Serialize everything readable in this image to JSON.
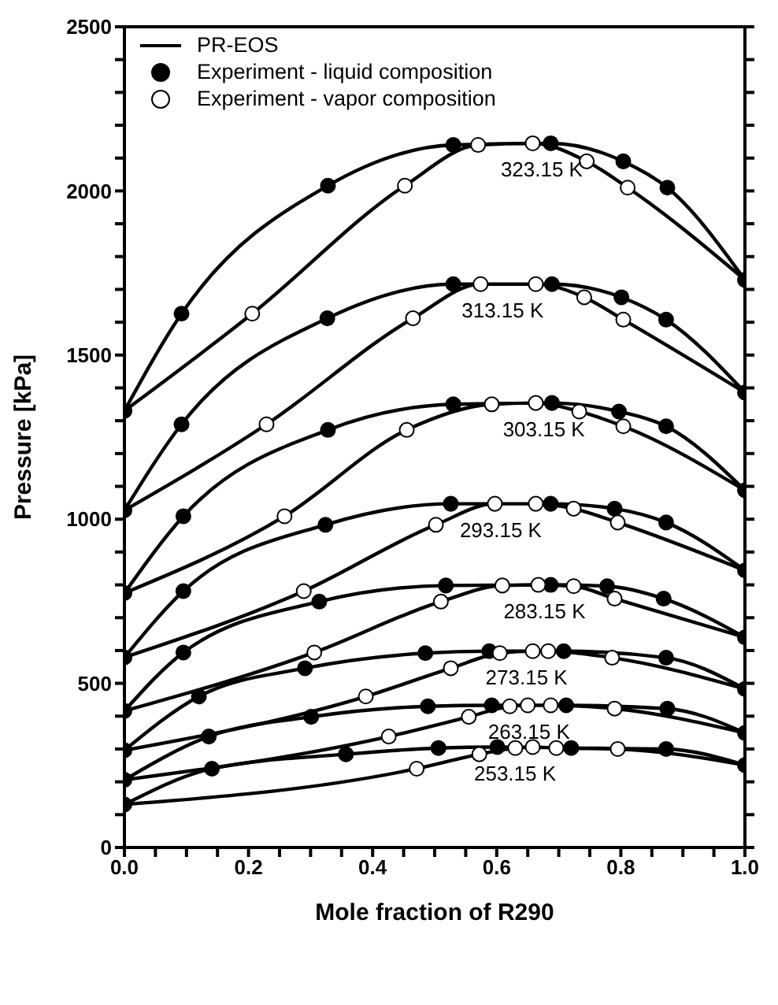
{
  "chart_data": {
    "type": "line",
    "xlabel": "Mole fraction of R290",
    "ylabel": "Pressure [kPa]",
    "xlim": [
      0,
      1
    ],
    "ylim": [
      0,
      2500
    ],
    "xticks": [
      {
        "value": 0,
        "label": "0.0"
      },
      {
        "value": 0.05,
        "label": null
      },
      {
        "value": 0.1,
        "label": null
      },
      {
        "value": 0.15,
        "label": null
      },
      {
        "value": 0.2,
        "label": "0.2"
      },
      {
        "value": 0.25,
        "label": null
      },
      {
        "value": 0.3,
        "label": null
      },
      {
        "value": 0.35,
        "label": null
      },
      {
        "value": 0.4,
        "label": "0.4"
      },
      {
        "value": 0.45,
        "label": null
      },
      {
        "value": 0.5,
        "label": null
      },
      {
        "value": 0.55,
        "label": null
      },
      {
        "value": 0.6,
        "label": "0.6"
      },
      {
        "value": 0.65,
        "label": null
      },
      {
        "value": 0.7,
        "label": null
      },
      {
        "value": 0.75,
        "label": null
      },
      {
        "value": 0.8,
        "label": "0.8"
      },
      {
        "value": 0.85,
        "label": null
      },
      {
        "value": 0.9,
        "label": null
      },
      {
        "value": 0.95,
        "label": null
      },
      {
        "value": 1,
        "label": "1.0"
      }
    ],
    "yticks": [
      0,
      {
        "value": 100,
        "label": null
      },
      {
        "value": 200,
        "label": null
      },
      {
        "value": 300,
        "label": null
      },
      {
        "value": 400,
        "label": null
      },
      500,
      {
        "value": 600,
        "label": null
      },
      {
        "value": 700,
        "label": null
      },
      {
        "value": 800,
        "label": null
      },
      {
        "value": 900,
        "label": null
      },
      1000,
      {
        "value": 1100,
        "label": null
      },
      {
        "value": 1200,
        "label": null
      },
      {
        "value": 1300,
        "label": null
      },
      {
        "value": 1400,
        "label": null
      },
      1500,
      {
        "value": 1600,
        "label": null
      },
      {
        "value": 1700,
        "label": null
      },
      {
        "value": 1800,
        "label": null
      },
      {
        "value": 1900,
        "label": null
      },
      2000,
      {
        "value": 2100,
        "label": null
      },
      {
        "value": 2200,
        "label": null
      },
      {
        "value": 2300,
        "label": null
      },
      {
        "value": 2400,
        "label": null
      },
      2500
    ],
    "grid": false,
    "legend": "top left",
    "line_style": "solid",
    "series": [
      {
        "name": "PR-EOS",
        "color": "#000000",
        "x": [
          0,
          0.092,
          0.328,
          0.53,
          0.687,
          0.804,
          0.875,
          1,
          null,
          0,
          0.206,
          0.452,
          0.57,
          0.658,
          0.745,
          0.811,
          1
        ],
        "values": [
          1330,
          1626,
          2016,
          2140,
          2145,
          2090,
          2010,
          1729,
          null,
          1330,
          1626,
          2016,
          2140,
          2145,
          2090,
          2010,
          1729
        ]
      },
      {
        "color": "#000000",
        "x": [
          0,
          0.092,
          0.327,
          0.53,
          0.689,
          0.801,
          0.873,
          1,
          null,
          0,
          0.229,
          0.465,
          0.574,
          0.663,
          0.741,
          0.804,
          1
        ],
        "values": [
          1027,
          1289,
          1612,
          1716,
          1716,
          1676,
          1608,
          1386,
          null,
          1027,
          1289,
          1612,
          1716,
          1716,
          1676,
          1608,
          1386
        ]
      },
      {
        "color": "#000000",
        "x": [
          0,
          0.095,
          0.328,
          0.53,
          0.689,
          0.797,
          0.873,
          1,
          null,
          0,
          0.258,
          0.455,
          0.592,
          0.663,
          0.733,
          0.804,
          1
        ],
        "values": [
          775,
          1009,
          1272,
          1350,
          1354,
          1328,
          1283,
          1088,
          null,
          775,
          1009,
          1272,
          1350,
          1354,
          1328,
          1283,
          1088
        ]
      },
      {
        "color": "#000000",
        "x": [
          0,
          0.095,
          0.324,
          0.526,
          0.687,
          0.79,
          0.873,
          1,
          null,
          0,
          0.289,
          0.502,
          0.597,
          0.663,
          0.724,
          0.795,
          1
        ],
        "values": [
          579,
          781,
          983,
          1047,
          1047,
          1032,
          990,
          844,
          null,
          579,
          781,
          983,
          1047,
          1047,
          1032,
          990,
          844
        ]
      },
      {
        "color": "#000000",
        "x": [
          0,
          0.095,
          0.314,
          0.518,
          0.687,
          0.778,
          0.869,
          1,
          null,
          0,
          0.306,
          0.51,
          0.609,
          0.667,
          0.724,
          0.79,
          1
        ],
        "values": [
          416,
          594,
          749,
          798,
          800,
          796,
          758,
          640,
          null,
          416,
          594,
          749,
          798,
          800,
          796,
          758,
          640
        ]
      },
      {
        "color": "#000000",
        "x": [
          0,
          0.12,
          0.291,
          0.485,
          0.588,
          0.708,
          0.873,
          1,
          null,
          0,
          0.389,
          0.526,
          0.605,
          0.658,
          0.683,
          0.786,
          1
        ],
        "values": [
          296,
          460,
          546,
          592,
          598,
          598,
          578,
          483,
          null,
          296,
          460,
          546,
          592,
          598,
          598,
          578,
          483
        ]
      },
      {
        "color": "#000000",
        "x": [
          0,
          0.136,
          0.301,
          0.489,
          0.592,
          0.712,
          0.875,
          1,
          null,
          0,
          0.426,
          0.555,
          0.621,
          0.65,
          0.687,
          0.79,
          1
        ],
        "values": [
          206,
          338,
          398,
          430,
          433,
          433,
          423,
          349,
          null,
          206,
          338,
          398,
          430,
          433,
          433,
          423,
          349
        ]
      },
      {
        "color": "#000000",
        "x": [
          0,
          0.141,
          0.357,
          0.506,
          0.601,
          0.72,
          0.873,
          1,
          null,
          0,
          0.471,
          0.572,
          0.63,
          0.658,
          0.696,
          0.795,
          1
        ],
        "values": [
          131,
          240,
          284,
          303,
          306,
          303,
          300,
          251,
          null,
          131,
          240,
          284,
          303,
          306,
          303,
          300,
          251
        ]
      },
      {
        "type": "scatter",
        "marker": "circle",
        "name": "Experiment - liquid composition",
        "color": "#000000",
        "x": [
          0,
          1,
          0.092,
          0.328,
          0.53,
          0.687,
          0.804,
          0.875,
          0,
          1,
          0.092,
          0.327,
          0.53,
          0.689,
          0.801,
          0.873,
          0,
          1,
          0.095,
          0.328,
          0.53,
          0.689,
          0.797,
          0.873,
          0,
          1,
          0.095,
          0.324,
          0.526,
          0.687,
          0.79,
          0.873,
          0,
          1,
          0.095,
          0.314,
          0.518,
          0.687,
          0.778,
          0.869,
          0,
          1,
          0.12,
          0.291,
          0.485,
          0.588,
          0.708,
          0.873,
          0,
          1,
          0.136,
          0.301,
          0.489,
          0.592,
          0.712,
          0.875,
          0,
          1,
          0.141,
          0.357,
          0.506,
          0.601,
          0.72,
          0.873
        ],
        "values": [
          1330,
          1729,
          1626,
          2016,
          2140,
          2145,
          2090,
          2010,
          1027,
          1386,
          1289,
          1612,
          1716,
          1716,
          1676,
          1608,
          775,
          1088,
          1009,
          1272,
          1350,
          1354,
          1328,
          1283,
          579,
          844,
          781,
          983,
          1047,
          1047,
          1032,
          990,
          416,
          640,
          594,
          749,
          798,
          800,
          796,
          758,
          296,
          483,
          460,
          546,
          592,
          598,
          598,
          578,
          206,
          349,
          338,
          398,
          430,
          433,
          433,
          423,
          131,
          251,
          240,
          284,
          303,
          306,
          303,
          300
        ]
      },
      {
        "type": "scatter",
        "marker": "circle",
        "name": "Experiment - vapor composition",
        "color": "#ffffff",
        "x": [
          0.206,
          0.452,
          0.57,
          0.658,
          0.745,
          0.811,
          0.229,
          0.465,
          0.574,
          0.663,
          0.741,
          0.804,
          0.258,
          0.455,
          0.592,
          0.663,
          0.733,
          0.804,
          0.289,
          0.502,
          0.597,
          0.663,
          0.724,
          0.795,
          0.306,
          0.51,
          0.609,
          0.667,
          0.724,
          0.79,
          0.389,
          0.526,
          0.605,
          0.658,
          0.683,
          0.786,
          0.426,
          0.555,
          0.621,
          0.65,
          0.687,
          0.79,
          0.471,
          0.572,
          0.63,
          0.658,
          0.696,
          0.795
        ],
        "values": [
          1626,
          2016,
          2140,
          2145,
          2090,
          2010,
          1289,
          1612,
          1716,
          1716,
          1676,
          1608,
          1009,
          1272,
          1350,
          1354,
          1328,
          1283,
          781,
          983,
          1047,
          1047,
          1032,
          990,
          594,
          749,
          798,
          800,
          796,
          758,
          460,
          546,
          592,
          598,
          598,
          578,
          338,
          398,
          430,
          433,
          433,
          423,
          240,
          284,
          303,
          306,
          303,
          300
        ]
      }
    ],
    "annotations": [
      "323.15 K",
      "313.15 K",
      "303.15 K",
      "293.15 K",
      "283.15 K",
      "273.15 K",
      "263.15 K",
      "253.15 K"
    ]
  }
}
